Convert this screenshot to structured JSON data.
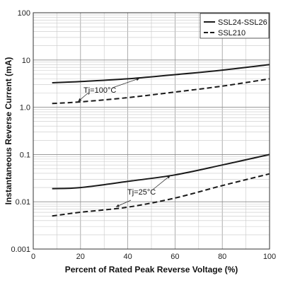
{
  "chart_data": {
    "type": "line",
    "xlabel": "Percent of Rated Peak Reverse Voltage (%)",
    "ylabel": "Instantaneous Reverse Current (mA)",
    "xlim": [
      0,
      100
    ],
    "ylim": [
      0.001,
      100
    ],
    "yscale": "log",
    "grid": true,
    "x_ticks": [
      "0",
      "20",
      "40",
      "60",
      "80",
      "100"
    ],
    "y_ticks": [
      "0.001",
      "0.01",
      "0.1",
      "1.0",
      "10",
      "100"
    ],
    "legend": {
      "position": "top-right",
      "entries": [
        "SSL24-SSL26",
        "SSL210"
      ]
    },
    "series": [
      {
        "name": "SSL24-SSL26",
        "condition": "Tj=100°C",
        "style": "solid",
        "color": "#1a1a1a",
        "x": [
          8,
          20,
          40,
          60,
          80,
          100
        ],
        "y": [
          3.3,
          3.5,
          4.0,
          4.9,
          6.1,
          8.0
        ]
      },
      {
        "name": "SSL210",
        "condition": "Tj=100°C",
        "style": "dashed",
        "color": "#1a1a1a",
        "x": [
          8,
          20,
          40,
          60,
          80,
          100
        ],
        "y": [
          1.2,
          1.3,
          1.6,
          2.1,
          2.8,
          4.0
        ]
      },
      {
        "name": "SSL24-SSL26",
        "condition": "Tj=25°C",
        "style": "solid",
        "color": "#1a1a1a",
        "x": [
          8,
          20,
          40,
          60,
          80,
          100
        ],
        "y": [
          0.019,
          0.02,
          0.027,
          0.037,
          0.06,
          0.1
        ]
      },
      {
        "name": "SSL210",
        "condition": "Tj=25°C",
        "style": "dashed",
        "color": "#1a1a1a",
        "x": [
          8,
          20,
          40,
          60,
          80,
          100
        ],
        "y": [
          0.005,
          0.006,
          0.0077,
          0.012,
          0.022,
          0.039
        ]
      }
    ],
    "annotations": [
      {
        "text": "Tj=100°C",
        "targets": [
          {
            "x": 45,
            "y": 4.1
          },
          {
            "x": 19,
            "y": 1.33
          }
        ]
      },
      {
        "text": "Tj=25°C",
        "targets": [
          {
            "x": 58,
            "y": 0.036
          },
          {
            "x": 35,
            "y": 0.0078
          }
        ]
      }
    ]
  }
}
